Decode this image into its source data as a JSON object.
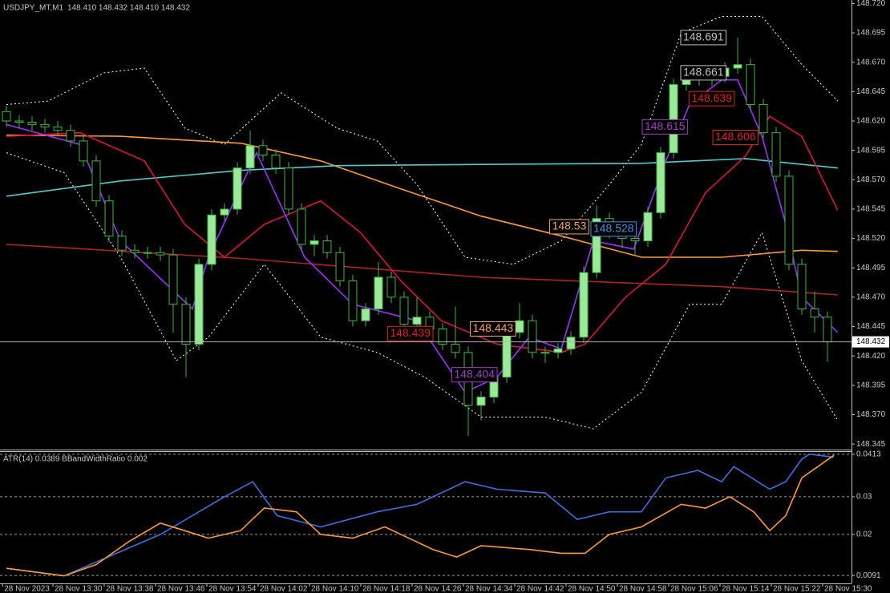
{
  "chart_data": [
    {
      "type": "candlestick",
      "title": "USDJPY_MT,M1",
      "subtitle": "148.410 148.432 148.410 148.432",
      "up_color": "#9be89b",
      "down_color": "#000000",
      "wick_color": "#3cb83c",
      "xlim": [
        -0.5,
        65.875
      ],
      "xticks": [
        {
          "value": -0.3,
          "label": "28 Nov 2023"
        },
        {
          "value": 3.625,
          "label": "28 Nov 13:30"
        },
        {
          "value": 7.625,
          "label": "28 Nov 13:38"
        },
        {
          "value": 11.625,
          "label": "28 Nov 13:46"
        },
        {
          "value": 15.625,
          "label": "28 Nov 13:54"
        },
        {
          "value": 19.625,
          "label": "28 Nov 14:02"
        },
        {
          "value": 23.625,
          "label": "28 Nov 14:10"
        },
        {
          "value": 27.625,
          "label": "28 Nov 14:18"
        },
        {
          "value": 31.625,
          "label": "28 Nov 14:26"
        },
        {
          "value": 35.625,
          "label": "28 Nov 14:34"
        },
        {
          "value": 39.625,
          "label": "28 Nov 14:42"
        },
        {
          "value": 43.625,
          "label": "28 Nov 14:50"
        },
        {
          "value": 47.625,
          "label": "28 Nov 14:58"
        },
        {
          "value": 51.625,
          "label": "28 Nov 15:06"
        },
        {
          "value": 55.625,
          "label": "28 Nov 15:14"
        },
        {
          "value": 59.625,
          "label": "28 Nov 15:22"
        },
        {
          "value": 63.625,
          "label": "28 Nov 15:30"
        }
      ],
      "ylim": [
        148.341,
        148.723
      ],
      "yticks": [
        {
          "value": 148.72,
          "label": "148.720"
        },
        {
          "value": 148.695,
          "label": "148.695"
        },
        {
          "value": 148.67,
          "label": "148.670"
        },
        {
          "value": 148.645,
          "label": "148.645"
        },
        {
          "value": 148.62,
          "label": "148.620"
        },
        {
          "value": 148.595,
          "label": "148.595"
        },
        {
          "value": 148.57,
          "label": "148.570"
        },
        {
          "value": 148.545,
          "label": "148.545"
        },
        {
          "value": 148.52,
          "label": "148.520"
        },
        {
          "value": 148.495,
          "label": "148.495"
        },
        {
          "value": 148.47,
          "label": "148.470"
        },
        {
          "value": 148.445,
          "label": "148.445"
        },
        {
          "value": 148.42,
          "label": "148.420"
        },
        {
          "value": 148.395,
          "label": "148.395"
        },
        {
          "value": 148.37,
          "label": "148.370"
        },
        {
          "value": 148.345,
          "label": "148.345"
        }
      ],
      "current_price": {
        "value": 148.432,
        "label": "148.432"
      },
      "candles": [
        [
          148.628,
          148.633,
          148.615,
          148.62
        ],
        [
          148.62,
          148.625,
          148.614,
          148.619
        ],
        [
          148.619,
          148.624,
          148.612,
          148.617
        ],
        [
          148.617,
          148.622,
          148.61,
          148.615
        ],
        [
          148.615,
          148.62,
          148.607,
          148.612
        ],
        [
          148.612,
          148.617,
          148.598,
          148.603
        ],
        [
          148.603,
          148.608,
          148.581,
          148.586
        ],
        [
          148.586,
          148.591,
          148.547,
          148.552
        ],
        [
          148.552,
          148.557,
          148.517,
          148.522
        ],
        [
          148.522,
          148.527,
          148.505,
          148.51
        ],
        [
          148.51,
          148.515,
          148.503,
          148.508
        ],
        [
          148.508,
          148.513,
          148.503,
          148.508
        ],
        [
          148.508,
          148.513,
          148.501,
          148.506
        ],
        [
          148.506,
          148.511,
          148.44,
          148.464
        ],
        [
          148.464,
          148.47,
          148.402,
          148.43
        ],
        [
          148.43,
          148.503,
          148.425,
          148.498
        ],
        [
          148.498,
          148.545,
          148.493,
          148.54
        ],
        [
          148.54,
          148.55,
          148.535,
          148.545
        ],
        [
          148.545,
          148.585,
          148.54,
          148.58
        ],
        [
          148.58,
          148.612,
          148.575,
          148.599
        ],
        [
          148.599,
          148.604,
          148.586,
          148.591
        ],
        [
          148.591,
          148.596,
          148.575,
          148.58
        ],
        [
          148.58,
          148.585,
          148.54,
          148.545
        ],
        [
          148.545,
          148.55,
          148.51,
          148.515
        ],
        [
          148.515,
          148.523,
          148.505,
          148.518
        ],
        [
          148.518,
          148.523,
          148.503,
          148.508
        ],
        [
          148.508,
          148.513,
          148.479,
          148.484
        ],
        [
          148.484,
          148.489,
          148.445,
          148.45
        ],
        [
          148.45,
          148.465,
          148.445,
          148.46
        ],
        [
          148.46,
          148.5,
          148.455,
          148.487
        ],
        [
          148.487,
          148.492,
          148.465,
          148.47
        ],
        [
          148.47,
          148.475,
          148.442,
          148.447
        ],
        [
          148.447,
          148.47,
          148.442,
          148.453
        ],
        [
          148.453,
          148.458,
          148.438,
          148.443
        ],
        [
          148.443,
          148.448,
          148.425,
          148.43
        ],
        [
          148.43,
          148.462,
          148.418,
          148.423
        ],
        [
          148.423,
          148.428,
          148.352,
          148.378
        ],
        [
          148.378,
          148.39,
          148.365,
          148.385
        ],
        [
          148.385,
          148.407,
          148.38,
          148.402
        ],
        [
          148.402,
          148.445,
          148.397,
          148.44
        ],
        [
          148.44,
          148.465,
          148.435,
          148.45
        ],
        [
          148.45,
          148.455,
          148.418,
          148.423
        ],
        [
          148.423,
          148.428,
          148.414,
          148.423
        ],
        [
          148.423,
          148.431,
          148.418,
          148.426
        ],
        [
          148.426,
          148.441,
          148.421,
          148.436
        ],
        [
          148.436,
          148.496,
          148.431,
          148.491
        ],
        [
          148.491,
          148.548,
          148.486,
          148.537
        ],
        [
          148.537,
          148.542,
          148.52,
          148.525
        ],
        [
          148.525,
          148.53,
          148.512,
          148.52
        ],
        [
          148.52,
          148.525,
          148.505,
          148.518
        ],
        [
          148.518,
          148.547,
          148.513,
          148.542
        ],
        [
          148.542,
          148.598,
          148.537,
          148.593
        ],
        [
          148.593,
          148.656,
          148.588,
          148.651
        ],
        [
          148.651,
          148.668,
          148.646,
          148.658
        ],
        [
          148.658,
          148.663,
          148.65,
          148.655
        ],
        [
          148.655,
          148.663,
          148.65,
          148.658
        ],
        [
          148.658,
          148.67,
          148.653,
          148.665
        ],
        [
          148.665,
          148.691,
          148.66,
          148.668
        ],
        [
          148.668,
          148.673,
          148.629,
          148.634
        ],
        [
          148.634,
          148.639,
          148.605,
          148.61
        ],
        [
          148.61,
          148.615,
          148.568,
          148.573
        ],
        [
          148.573,
          148.578,
          148.493,
          148.498
        ],
        [
          148.498,
          148.503,
          148.455,
          148.46
        ],
        [
          148.46,
          148.475,
          148.44,
          148.453
        ],
        [
          148.453,
          148.458,
          148.415,
          148.432
        ]
      ],
      "lines": [
        {
          "color": "#ffffff",
          "dashed": true,
          "x": [
            0,
            3.25,
            7.6,
            10.75,
            13.9,
            17,
            21.4,
            25.75,
            28.9,
            32,
            35.75,
            39.5,
            43.25,
            47,
            49.5,
            52.6,
            55.75,
            58.9,
            62,
            64.8
          ],
          "values": [
            148.634,
            148.637,
            148.661,
            148.665,
            148.614,
            148.6,
            148.644,
            148.614,
            148.603,
            148.566,
            148.504,
            148.498,
            148.518,
            148.566,
            148.6,
            148.695,
            148.709,
            148.709,
            148.668,
            148.637
          ]
        },
        {
          "color": "#ffffff",
          "dashed": true,
          "x": [
            0,
            4.5,
            8.9,
            13.25,
            15.75,
            20.1,
            24.5,
            28.9,
            32.6,
            37,
            42,
            45.75,
            49.5,
            53.25,
            55.75,
            58.9,
            62,
            64.8
          ],
          "values": [
            148.593,
            148.576,
            148.504,
            148.416,
            148.436,
            148.498,
            148.436,
            148.423,
            148.402,
            148.368,
            148.368,
            148.358,
            148.389,
            148.464,
            148.464,
            148.525,
            148.416,
            148.365
          ]
        },
        {
          "color": "#b22222",
          "dashed": false,
          "x": [
            0,
            18.3,
            37,
            55.8,
            64.8
          ],
          "values": [
            148.515,
            148.503,
            148.487,
            148.479,
            148.472
          ]
        },
        {
          "color": "#ff9a2e",
          "dashed": false,
          "x": [
            0,
            8.9,
            18.3,
            24.5,
            30.8,
            37,
            43.3,
            49.5,
            55.8,
            62,
            64.8
          ],
          "values": [
            148.608,
            148.607,
            148.601,
            148.586,
            148.562,
            148.539,
            148.522,
            148.504,
            148.504,
            148.51,
            148.509
          ]
        },
        {
          "color": "#48d1cc",
          "dashed": false,
          "x": [
            0,
            8.9,
            18.3,
            25.8,
            37,
            49.5,
            57.6,
            64.8
          ],
          "values": [
            148.556,
            148.569,
            148.578,
            148.582,
            148.583,
            148.584,
            148.588,
            148.58
          ]
        },
        {
          "color": "#dc143c",
          "dashed": false,
          "x": [
            0,
            5.75,
            10.75,
            13.9,
            17,
            20.1,
            24.5,
            27.6,
            30.75,
            33.9,
            38.25,
            43.25,
            45.1,
            48.25,
            51.4,
            54.5,
            57.6,
            59.5,
            62,
            64.8
          ],
          "values": [
            148.607,
            148.61,
            148.586,
            148.532,
            148.504,
            148.532,
            148.552,
            148.525,
            148.484,
            148.45,
            148.43,
            148.423,
            148.43,
            148.47,
            148.498,
            148.559,
            148.59,
            148.624,
            148.607,
            148.544
          ]
        },
        {
          "color": "#9b30ff",
          "dashed": false,
          "x": [
            0,
            5.75,
            8.9,
            14.5,
            15.75,
            19.5,
            23.25,
            27,
            32,
            35.75,
            38.25,
            40.75,
            43.25,
            45.75,
            48.9,
            51.4,
            53.25,
            55.75,
            57,
            58.9,
            60.75,
            62,
            64.8
          ],
          "values": [
            148.617,
            148.6,
            148.518,
            148.46,
            148.504,
            148.593,
            148.504,
            148.464,
            148.45,
            148.389,
            148.402,
            148.436,
            148.426,
            148.518,
            148.511,
            148.586,
            148.634,
            148.655,
            148.655,
            148.607,
            148.532,
            148.47,
            148.44
          ]
        }
      ],
      "annotations": [
        {
          "label": "148.439",
          "value": 148.439,
          "x": 33.25,
          "color": "#e02020"
        },
        {
          "label": "148.443",
          "value": 148.443,
          "x": 39.7,
          "color": "#f4a460"
        },
        {
          "label": "148.404",
          "value": 148.404,
          "x": 38.25,
          "color": "#a040c0"
        },
        {
          "label": "148.53",
          "value": 148.53,
          "x": 45.4,
          "color": "#f4a460"
        },
        {
          "label": "148.528",
          "value": 148.528,
          "x": 49.1,
          "color": "#4a90e2"
        },
        {
          "label": "148.615",
          "value": 148.615,
          "x": 53.1,
          "color": "#a040c0"
        },
        {
          "label": "148.661",
          "value": 148.661,
          "x": 56.1,
          "color": "#c0c0c0"
        },
        {
          "label": "148.639",
          "value": 148.639,
          "x": 56.75,
          "color": "#e02020"
        },
        {
          "label": "148.606",
          "value": 148.606,
          "x": 58.6,
          "color": "#e02020"
        },
        {
          "label": "148.691",
          "value": 148.691,
          "x": 56.1,
          "color": "#c0c0c0"
        }
      ]
    },
    {
      "type": "line",
      "title": "ATR(14) 0.0389  BBandWidthRatio 0.002",
      "xlim": [
        -0.5,
        65.875
      ],
      "ylim": [
        0.007,
        0.0419
      ],
      "yticks": [
        0.0413,
        0.03,
        0.02,
        0.0091
      ],
      "series": [
        {
          "color": "#3f6fe0",
          "x": [
            0,
            4.5,
            12,
            17,
            19.2,
            21.1,
            24.5,
            28.9,
            32,
            35.75,
            38.25,
            42,
            44.5,
            47,
            49.5,
            51.4,
            53.9,
            55.75,
            56.7,
            59.5,
            60.75,
            62,
            62.6,
            64.5
          ],
          "values": [
            0.011,
            0.009,
            0.02,
            0.03,
            0.034,
            0.025,
            0.022,
            0.026,
            0.028,
            0.034,
            0.032,
            0.031,
            0.024,
            0.026,
            0.026,
            0.035,
            0.037,
            0.034,
            0.038,
            0.032,
            0.034,
            0.04,
            0.0413,
            0.0405
          ]
        },
        {
          "color": "#ff9a2e",
          "x": [
            0,
            4.5,
            7,
            9.5,
            12,
            13.9,
            15.75,
            18.25,
            20.1,
            22.6,
            24.5,
            27,
            29.5,
            33.25,
            35.1,
            37,
            40.75,
            43.25,
            45.1,
            47,
            49.5,
            52.6,
            54.5,
            56.4,
            58.25,
            59.5,
            60.75,
            62,
            64.5
          ],
          "values": [
            0.011,
            0.009,
            0.012,
            0.018,
            0.023,
            0.021,
            0.019,
            0.021,
            0.027,
            0.026,
            0.02,
            0.019,
            0.022,
            0.016,
            0.014,
            0.017,
            0.016,
            0.015,
            0.015,
            0.02,
            0.022,
            0.028,
            0.027,
            0.03,
            0.026,
            0.021,
            0.025,
            0.035,
            0.041
          ]
        }
      ]
    }
  ]
}
